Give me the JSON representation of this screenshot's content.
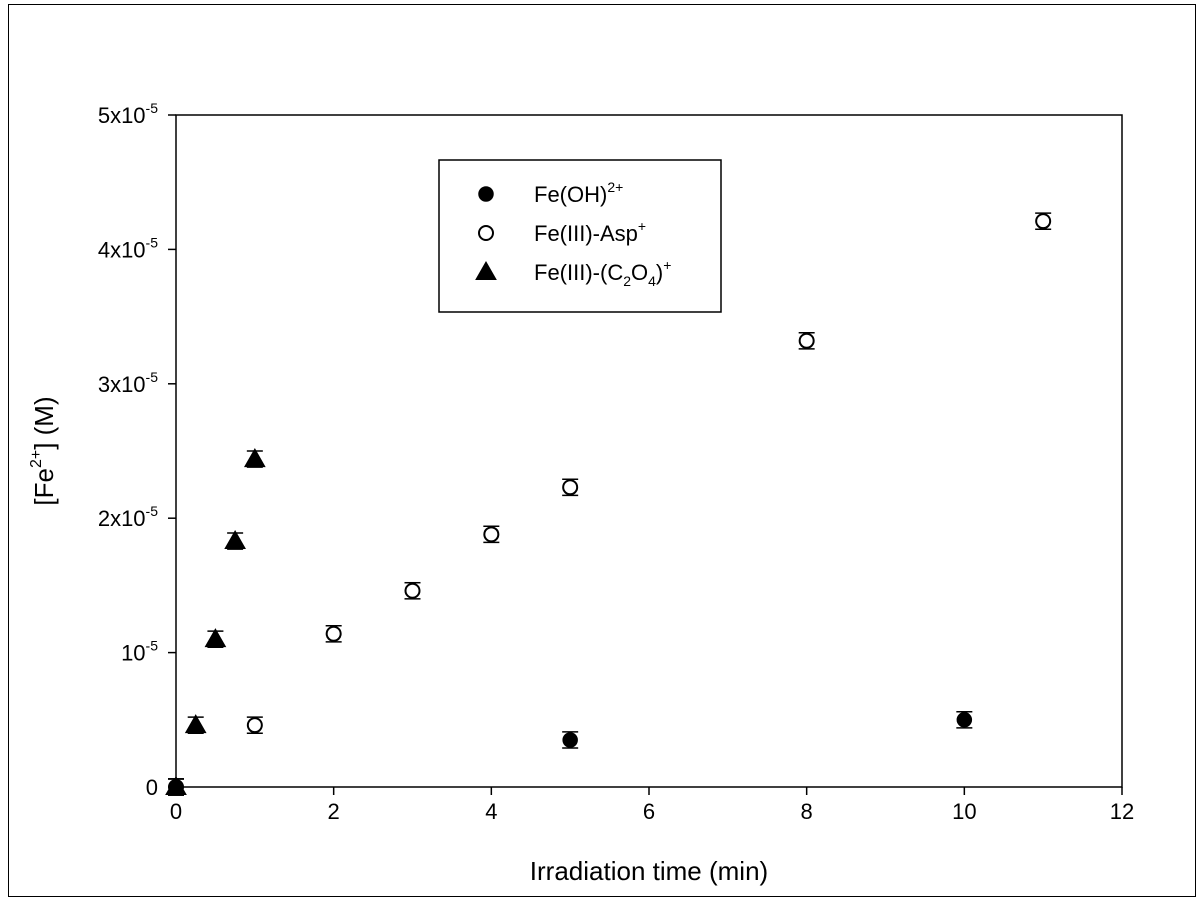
{
  "chart_data": {
    "type": "scatter",
    "xlabel": "Irradiation time (min)",
    "ylabel": {
      "prefix": "[Fe",
      "sup": "2+",
      "suffix": "] (M)"
    },
    "xlim": [
      0,
      12
    ],
    "ylim": [
      0,
      5e-05
    ],
    "x_ticks": [
      {
        "value": 0,
        "label": "0"
      },
      {
        "value": 2,
        "label": "2"
      },
      {
        "value": 4,
        "label": "4"
      },
      {
        "value": 6,
        "label": "6"
      },
      {
        "value": 8,
        "label": "8"
      },
      {
        "value": 10,
        "label": "10"
      },
      {
        "value": 12,
        "label": "12"
      }
    ],
    "y_ticks": [
      {
        "value": 0,
        "base": "0",
        "exp": ""
      },
      {
        "value": 1e-05,
        "base": "10",
        "exp": "-5"
      },
      {
        "value": 2e-05,
        "base": "2x10",
        "exp": "-5"
      },
      {
        "value": 3e-05,
        "base": "3x10",
        "exp": "-5"
      },
      {
        "value": 4e-05,
        "base": "4x10",
        "exp": "-5"
      },
      {
        "value": 5e-05,
        "base": "5x10",
        "exp": "-5"
      }
    ],
    "grid": false,
    "legend_position": "top-center",
    "series": [
      {
        "name": "Fe(OH)2+",
        "legend_parts": [
          {
            "t": "Fe(OH)",
            "s": "n"
          },
          {
            "t": "2+",
            "s": "sup"
          }
        ],
        "marker": "filled-circle",
        "points": [
          {
            "x": 0,
            "y": 0,
            "err": 6e-07
          },
          {
            "x": 5,
            "y": 3.5e-06,
            "err": 6e-07
          },
          {
            "x": 10,
            "y": 5e-06,
            "err": 6e-07
          }
        ]
      },
      {
        "name": "Fe(III)-Asp+",
        "legend_parts": [
          {
            "t": "Fe(III)-Asp",
            "s": "n"
          },
          {
            "t": "+",
            "s": "sup"
          }
        ],
        "marker": "open-circle",
        "points": [
          {
            "x": 0,
            "y": 0,
            "err": 6e-07
          },
          {
            "x": 1,
            "y": 4.6e-06,
            "err": 6e-07
          },
          {
            "x": 2,
            "y": 1.14e-05,
            "err": 6e-07
          },
          {
            "x": 3,
            "y": 1.46e-05,
            "err": 6e-07
          },
          {
            "x": 4,
            "y": 1.88e-05,
            "err": 6e-07
          },
          {
            "x": 5,
            "y": 2.23e-05,
            "err": 6e-07
          },
          {
            "x": 8,
            "y": 3.32e-05,
            "err": 6e-07
          },
          {
            "x": 11,
            "y": 4.21e-05,
            "err": 6e-07
          }
        ]
      },
      {
        "name": "Fe(III)-(C2O4)+",
        "legend_parts": [
          {
            "t": "Fe(III)-(C",
            "s": "n"
          },
          {
            "t": "2",
            "s": "sub"
          },
          {
            "t": "O",
            "s": "n"
          },
          {
            "t": "4",
            "s": "sub"
          },
          {
            "t": ")",
            "s": "n"
          },
          {
            "t": "+",
            "s": "sup"
          }
        ],
        "marker": "filled-triangle",
        "points": [
          {
            "x": 0,
            "y": 0,
            "err": 6e-07
          },
          {
            "x": 0.25,
            "y": 4.6e-06,
            "err": 6e-07
          },
          {
            "x": 0.5,
            "y": 1.1e-05,
            "err": 6e-07
          },
          {
            "x": 0.75,
            "y": 1.83e-05,
            "err": 6e-07
          },
          {
            "x": 1,
            "y": 2.44e-05,
            "err": 6e-07
          }
        ]
      }
    ]
  }
}
